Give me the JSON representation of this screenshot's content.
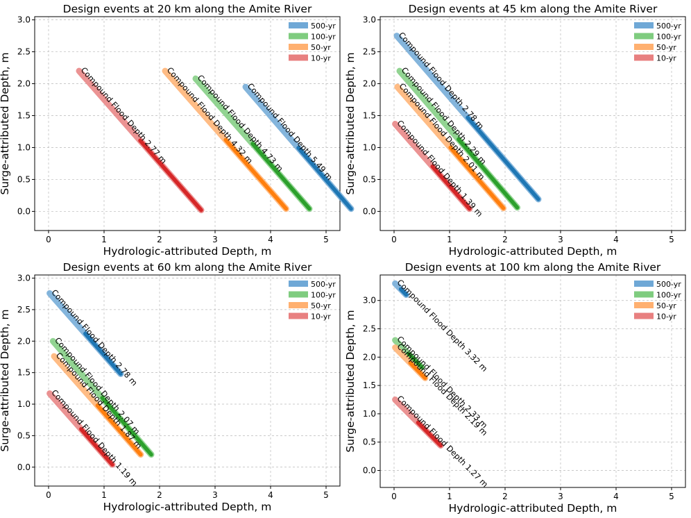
{
  "chart_data": [
    {
      "type": "line",
      "title": "Design events at 20 km along the Amite River",
      "xlabel": "Hydrologic-attributed Depth, m",
      "ylabel": "Surge-attributed Depth, m",
      "xlim": [
        -0.25,
        5.25
      ],
      "ylim": [
        -0.3,
        3.05
      ],
      "xticks": [
        "0",
        "1",
        "2",
        "3",
        "4",
        "5"
      ],
      "yticks": [
        "0.0",
        "0.5",
        "1.0",
        "1.5",
        "2.0",
        "2.5",
        "3.0"
      ],
      "grid": true,
      "legend_position": "top-right",
      "legend": [
        "500-yr",
        "100-yr",
        "50-yr",
        "10-yr"
      ],
      "series": [
        {
          "name": "500-yr",
          "color": "#1f77b4",
          "light": "#6fa8d6",
          "label": "Compound Flood Depth 5.49 m",
          "start": [
            3.55,
            1.95
          ],
          "end": [
            5.45,
            0.04
          ]
        },
        {
          "name": "100-yr",
          "color": "#2ca02c",
          "light": "#7fcc7f",
          "label": "Compound Flood Depth 4.73 m",
          "start": [
            2.65,
            2.08
          ],
          "end": [
            4.7,
            0.04
          ]
        },
        {
          "name": "50-yr",
          "color": "#ff7f0e",
          "light": "#ffb070",
          "label": "Compound Flood Depth 4.32 m",
          "start": [
            2.1,
            2.2
          ],
          "end": [
            4.28,
            0.04
          ]
        },
        {
          "name": "10-yr",
          "color": "#d62728",
          "light": "#e88080",
          "label": "Compound Flood Depth 2.77 m",
          "start": [
            0.55,
            2.2
          ],
          "end": [
            2.75,
            0.02
          ]
        }
      ]
    },
    {
      "type": "line",
      "title": "Design events at 45 km along the Amite River",
      "xlabel": "Hydrologic-attributed Depth, m",
      "ylabel": "Surge-attributed Depth, m",
      "xlim": [
        -0.25,
        5.25
      ],
      "ylim": [
        -0.3,
        3.05
      ],
      "xticks": [
        "0",
        "1",
        "2",
        "3",
        "4",
        "5"
      ],
      "yticks": [
        "0.0",
        "0.5",
        "1.0",
        "1.5",
        "2.0",
        "2.5",
        "3.0"
      ],
      "grid": true,
      "legend_position": "top-right",
      "legend": [
        "500-yr",
        "100-yr",
        "50-yr",
        "10-yr"
      ],
      "series": [
        {
          "name": "500-yr",
          "color": "#1f77b4",
          "light": "#6fa8d6",
          "label": "Compound Flood Depth 2.78 m",
          "start": [
            0.05,
            2.75
          ],
          "end": [
            2.6,
            0.19
          ]
        },
        {
          "name": "100-yr",
          "color": "#2ca02c",
          "light": "#7fcc7f",
          "label": "Compound Flood Depth 2.29 m",
          "start": [
            0.1,
            2.2
          ],
          "end": [
            2.22,
            0.06
          ]
        },
        {
          "name": "50-yr",
          "color": "#ff7f0e",
          "light": "#ffb070",
          "label": "Compound Flood Depth 2.01 m",
          "start": [
            0.06,
            1.95
          ],
          "end": [
            1.97,
            0.05
          ]
        },
        {
          "name": "10-yr",
          "color": "#d62728",
          "light": "#e88080",
          "label": "Compound Flood Depth 1.39 m",
          "start": [
            0.02,
            1.37
          ],
          "end": [
            1.36,
            0.04
          ]
        }
      ]
    },
    {
      "type": "line",
      "title": "Design events at 60 km along the Amite River",
      "xlabel": "Hydrologic-attributed Depth, m",
      "ylabel": "Surge-attributed Depth, m",
      "xlim": [
        -0.25,
        5.25
      ],
      "ylim": [
        -0.3,
        3.05
      ],
      "xticks": [
        "0",
        "1",
        "2",
        "3",
        "4",
        "5"
      ],
      "yticks": [
        "0.0",
        "0.5",
        "1.0",
        "1.5",
        "2.0",
        "2.5",
        "3.0"
      ],
      "grid": true,
      "legend_position": "top-right",
      "legend": [
        "500-yr",
        "100-yr",
        "50-yr",
        "10-yr"
      ],
      "series": [
        {
          "name": "500-yr",
          "color": "#1f77b4",
          "light": "#6fa8d6",
          "label": "Compound Flood Depth 2.78 m",
          "start": [
            0.02,
            2.76
          ],
          "end": [
            1.3,
            1.48
          ]
        },
        {
          "name": "100-yr",
          "color": "#2ca02c",
          "light": "#7fcc7f",
          "label": "Compound Flood Depth 2.07 m",
          "start": [
            0.08,
            2.0
          ],
          "end": [
            1.85,
            0.2
          ]
        },
        {
          "name": "50-yr",
          "color": "#ff7f0e",
          "light": "#ffb070",
          "label": "Compound Flood Depth 1.87 m",
          "start": [
            0.1,
            1.76
          ],
          "end": [
            1.66,
            0.2
          ]
        },
        {
          "name": "10-yr",
          "color": "#d62728",
          "light": "#e88080",
          "label": "Compound Flood Depth 1.19 m",
          "start": [
            0.02,
            1.17
          ],
          "end": [
            1.15,
            0.04
          ]
        }
      ]
    },
    {
      "type": "line",
      "title": "Design events at 100 km along the Amite River",
      "xlabel": "Hydrologic-attributed Depth, m",
      "ylabel": "Surge-attributed Depth, m",
      "xlim": [
        -0.25,
        5.25
      ],
      "ylim": [
        -0.3,
        3.45
      ],
      "xticks": [
        "0",
        "1",
        "2",
        "3",
        "4",
        "5"
      ],
      "yticks": [
        "0.0",
        "0.5",
        "1.0",
        "1.5",
        "2.0",
        "2.5",
        "3.0"
      ],
      "grid": true,
      "legend_position": "top-right",
      "legend": [
        "500-yr",
        "100-yr",
        "50-yr",
        "10-yr"
      ],
      "series": [
        {
          "name": "500-yr",
          "color": "#1f77b4",
          "light": "#6fa8d6",
          "label": "Compound Flood Depth 3.32 m",
          "start": [
            0.02,
            3.3
          ],
          "end": [
            0.22,
            3.1
          ]
        },
        {
          "name": "100-yr",
          "color": "#2ca02c",
          "light": "#7fcc7f",
          "label": "Compound Flood Depth 2.33 m",
          "start": [
            0.02,
            2.3
          ],
          "end": [
            0.5,
            1.82
          ]
        },
        {
          "name": "50-yr",
          "color": "#ff7f0e",
          "light": "#ffb070",
          "label": "Compound Flood Depth 2.19 m",
          "start": [
            0.02,
            2.17
          ],
          "end": [
            0.56,
            1.63
          ]
        },
        {
          "name": "10-yr",
          "color": "#d62728",
          "light": "#e88080",
          "label": "Compound Flood Depth 1.27 m",
          "start": [
            0.02,
            1.25
          ],
          "end": [
            0.84,
            0.44
          ]
        }
      ]
    }
  ]
}
